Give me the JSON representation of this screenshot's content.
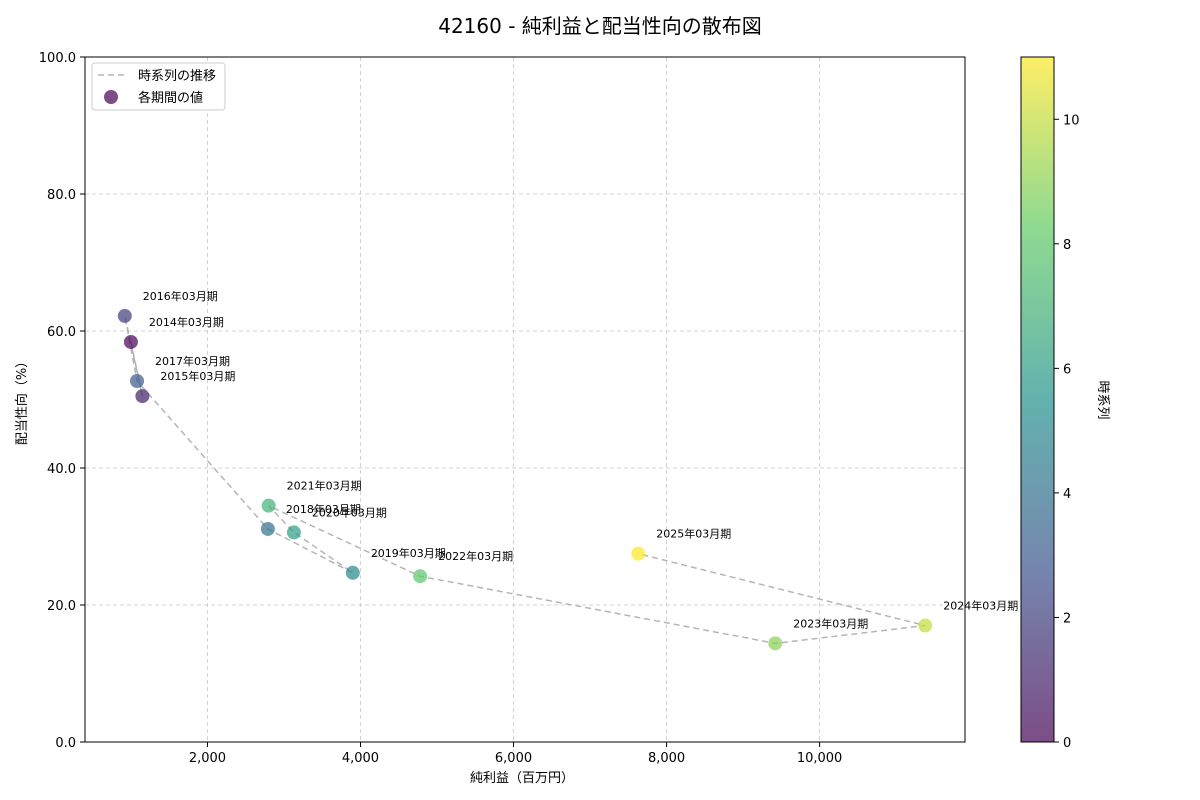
{
  "chart_data": {
    "type": "scatter",
    "title": "42160 - 純利益と配当性向の散布図",
    "xlabel": "純利益（百万円）",
    "ylabel": "配当性向（%）",
    "xlim": [
      400,
      11900
    ],
    "ylim": [
      0,
      100
    ],
    "x_ticks": [
      2000,
      4000,
      6000,
      8000,
      10000
    ],
    "x_tick_labels": [
      "2,000",
      "4,000",
      "6,000",
      "8,000",
      "10,000"
    ],
    "y_ticks": [
      0,
      20,
      40,
      60,
      80,
      100
    ],
    "y_tick_labels": [
      "0.0",
      "20.0",
      "40.0",
      "60.0",
      "80.0",
      "100.0"
    ],
    "grid": true,
    "legend": {
      "placement": "top-left",
      "line_label": "時系列の推移",
      "points_label": "各期間の値"
    },
    "colorbar": {
      "label": "時系列",
      "range": [
        0,
        11
      ],
      "ticks": [
        0,
        2,
        4,
        6,
        8,
        10
      ],
      "tick_labels": [
        "0",
        "2",
        "4",
        "6",
        "8",
        "10"
      ]
    },
    "points": [
      {
        "label": "2014年03月期",
        "x": 1000,
        "y": 58.4,
        "t": 0
      },
      {
        "label": "2015年03月期",
        "x": 1150,
        "y": 50.5,
        "t": 1
      },
      {
        "label": "2016年03月期",
        "x": 920,
        "y": 62.2,
        "t": 2
      },
      {
        "label": "2017年03月期",
        "x": 1080,
        "y": 52.7,
        "t": 3
      },
      {
        "label": "2018年03月期",
        "x": 2790,
        "y": 31.1,
        "t": 4
      },
      {
        "label": "2019年03月期",
        "x": 3900,
        "y": 24.7,
        "t": 5
      },
      {
        "label": "2020年03月期",
        "x": 3130,
        "y": 30.6,
        "t": 6
      },
      {
        "label": "2021年03月期",
        "x": 2800,
        "y": 34.5,
        "t": 7
      },
      {
        "label": "2022年03月期",
        "x": 4780,
        "y": 24.2,
        "t": 8
      },
      {
        "label": "2023年03月期",
        "x": 9420,
        "y": 14.4,
        "t": 9
      },
      {
        "label": "2024年03月期",
        "x": 11380,
        "y": 17.0,
        "t": 10
      },
      {
        "label": "2025年03月期",
        "x": 7630,
        "y": 27.5,
        "t": 11
      }
    ]
  }
}
